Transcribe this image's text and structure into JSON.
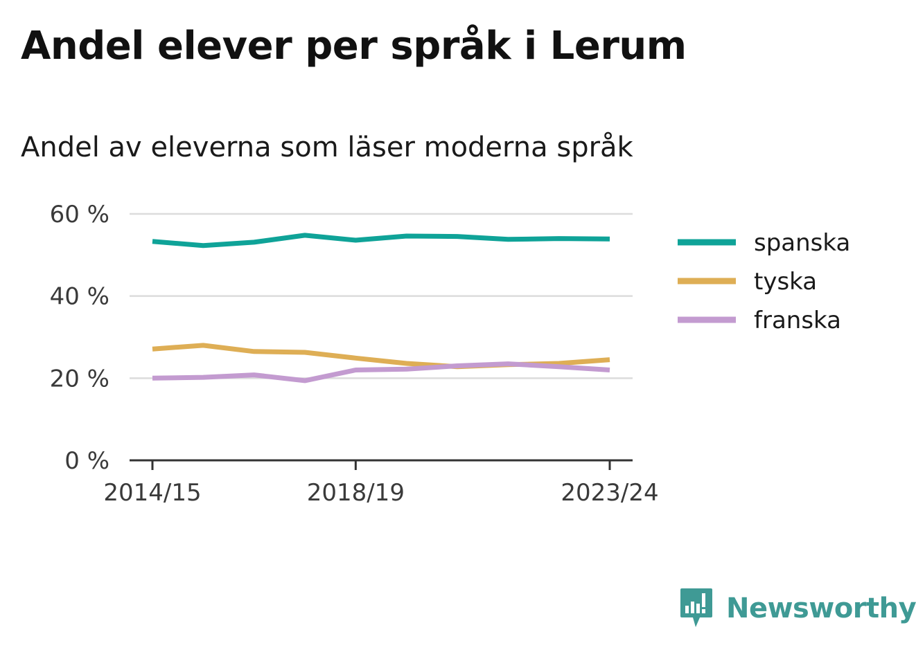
{
  "chart_data": {
    "type": "line",
    "title": "Andel elever per språk i Lerum",
    "subtitle": "Andel av eleverna som läser moderna språk",
    "x": [
      "2014/15",
      "2015/16",
      "2016/17",
      "2017/18",
      "2018/19",
      "2019/20",
      "2020/21",
      "2021/22",
      "2022/23",
      "2023/24"
    ],
    "x_tick_labels": [
      "2014/15",
      "2018/19",
      "2023/24"
    ],
    "ylim": [
      0,
      60
    ],
    "y_ticks": [
      0,
      20,
      40,
      60
    ],
    "y_tick_labels": [
      "0 %",
      "20 %",
      "40 %",
      "60 %"
    ],
    "grid": true,
    "legend_position": "right",
    "series": [
      {
        "name": "spanska",
        "color": "#0fa398",
        "values": [
          53.3,
          52.3,
          53.1,
          54.8,
          53.6,
          54.6,
          54.5,
          53.8,
          54.0,
          53.9
        ]
      },
      {
        "name": "tyska",
        "color": "#deae55",
        "values": [
          27.1,
          28.0,
          26.5,
          26.3,
          24.9,
          23.6,
          22.8,
          23.3,
          23.6,
          24.5
        ]
      },
      {
        "name": "franska",
        "color": "#c39bd0",
        "values": [
          20.0,
          20.2,
          20.8,
          19.4,
          22.0,
          22.2,
          23.0,
          23.5,
          22.8,
          22.0
        ]
      }
    ]
  },
  "branding": {
    "logo_text": "Newsworthy",
    "logo_color": "#3f9a95"
  }
}
